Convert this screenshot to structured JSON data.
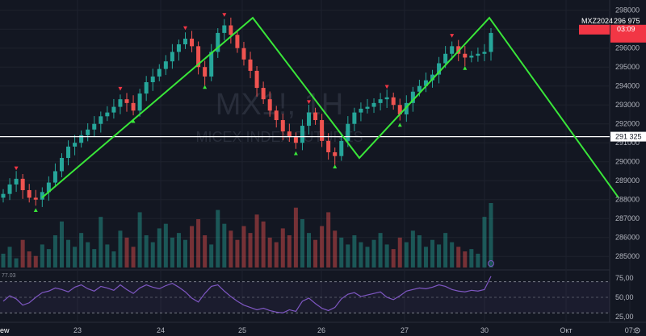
{
  "chart_data": {
    "type": "candlestick",
    "symbol_watermark": "MX1!, 1H",
    "symbol_sub_watermark": "MICEX INDEX FUTURES",
    "price_axis": {
      "ticks": [
        "298000",
        "297000",
        "296000",
        "295000",
        "294000",
        "293000",
        "292000",
        "291000",
        "290000",
        "289000",
        "288000",
        "287000",
        "286000",
        "285000"
      ],
      "ylim": [
        284500,
        298200
      ]
    },
    "date_axis": {
      "ticks": [
        "23",
        "24",
        "25",
        "26",
        "27",
        "30",
        "Окт",
        "07:"
      ]
    },
    "last_price": {
      "symbol": "MXZ2024",
      "price": "296 975",
      "countdown": "03:09",
      "value": 296975,
      "color": "#f23645"
    },
    "horizontal_line": {
      "label": "291 325",
      "value": 291325,
      "color": "#ffffff"
    },
    "pattern_line": {
      "color": "#39e639",
      "points": [
        {
          "x": "23 09:00",
          "y": 288100
        },
        {
          "x": "25 02:00",
          "y": 297600
        },
        {
          "x": "26 11:00",
          "y": 290200
        },
        {
          "x": "30 01:00",
          "y": 297600
        },
        {
          "x": "Окт 05:00",
          "y": 288100
        }
      ]
    },
    "price_series": [
      288300,
      288800,
      289100,
      288500,
      288100,
      288000,
      288400,
      288900,
      289500,
      290200,
      290800,
      291000,
      291400,
      291700,
      292000,
      292400,
      292600,
      292900,
      293300,
      293100,
      292700,
      293600,
      294200,
      294500,
      294900,
      295300,
      295800,
      296200,
      296500,
      296100,
      295000,
      294500,
      295800,
      296800,
      297200,
      296700,
      296000,
      295400,
      294800,
      293900,
      293300,
      292700,
      292200,
      291600,
      291300,
      291000,
      291900,
      292600,
      292200,
      291100,
      290500,
      290300,
      291100,
      292000,
      292600,
      292800,
      292900,
      293100,
      293300,
      293400,
      293000,
      292500,
      293100,
      293700,
      294000,
      294300,
      294600,
      295200,
      295700,
      296100,
      295700,
      295500,
      295600,
      295700,
      295800,
      296800
    ],
    "volume_series": [
      6,
      9,
      4,
      12,
      7,
      5,
      10,
      8,
      14,
      20,
      12,
      9,
      15,
      11,
      8,
      22,
      10,
      7,
      16,
      13,
      9,
      24,
      14,
      11,
      17,
      19,
      13,
      15,
      12,
      18,
      21,
      14,
      10,
      25,
      19,
      16,
      12,
      18,
      15,
      23,
      20,
      13,
      11,
      17,
      14,
      26,
      21,
      15,
      12,
      18,
      24,
      16,
      13,
      10,
      14,
      11,
      9,
      12,
      15,
      10,
      8,
      13,
      11,
      16,
      14,
      9,
      12,
      10,
      15,
      11,
      9,
      7,
      8,
      6,
      22,
      28
    ],
    "rsi": {
      "ticks": [
        "75,00",
        "50,00",
        "25,00"
      ],
      "upper_band": 70,
      "lower_band": 30,
      "ylim": [
        20,
        80
      ],
      "values": [
        45,
        52,
        48,
        40,
        43,
        50,
        56,
        58,
        62,
        60,
        57,
        63,
        66,
        61,
        58,
        64,
        62,
        59,
        66,
        60,
        55,
        62,
        66,
        63,
        61,
        65,
        68,
        63,
        57,
        49,
        44,
        55,
        64,
        66,
        58,
        51,
        45,
        40,
        37,
        34,
        36,
        33,
        31,
        30,
        34,
        32,
        45,
        49,
        42,
        36,
        33,
        37,
        48,
        54,
        56,
        51,
        53,
        55,
        57,
        50,
        47,
        52,
        58,
        60,
        62,
        61,
        63,
        66,
        64,
        60,
        58,
        57,
        59,
        58,
        60,
        77
      ],
      "label_left": "77.03",
      "label_corner": "ew",
      "color": "#7e57c2"
    }
  }
}
